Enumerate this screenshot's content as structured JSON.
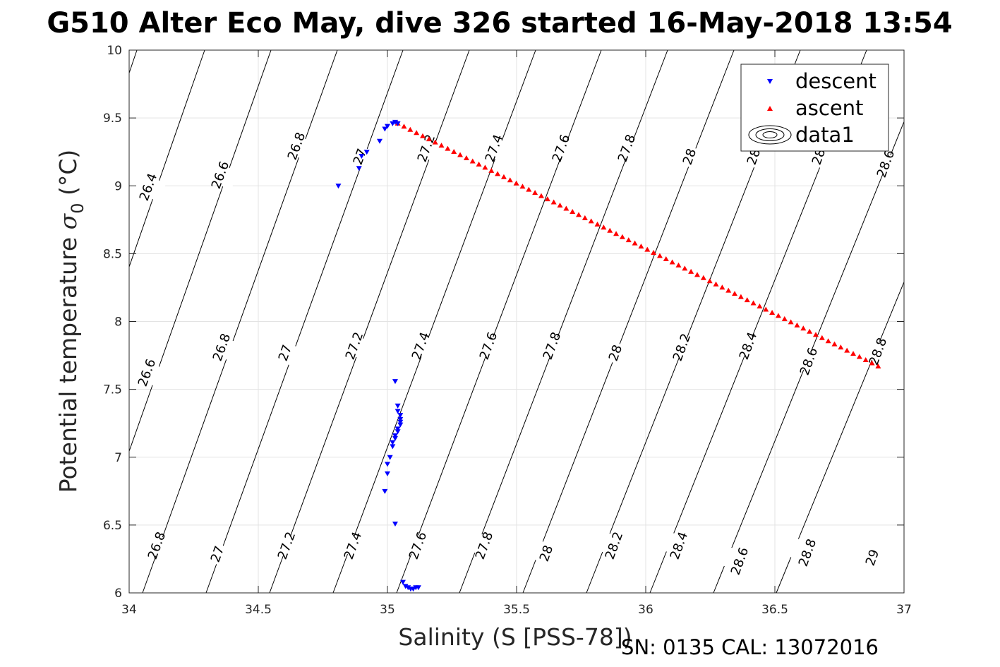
{
  "title": "G510 Alter Eco May, dive 326 started 16-May-2018 13:54",
  "footer": "SN: 0135  CAL: 13072016",
  "chart_data": {
    "type": "scatter",
    "xlabel": "Salinity (S [PSS-78])",
    "ylabel_main": "Potential temperature ",
    "ylabel_symbol": "σ",
    "ylabel_sub": "0",
    "ylabel_unit": " (°C)",
    "xlim": [
      34,
      37
    ],
    "ylim": [
      6,
      10
    ],
    "x_ticks": [
      34,
      34.5,
      35,
      35.5,
      36,
      36.5,
      37
    ],
    "x_tick_labels": [
      "34",
      "34.5",
      "35",
      "35.5",
      "36",
      "36.5",
      "37"
    ],
    "y_ticks": [
      6,
      6.5,
      7,
      7.5,
      8,
      8.5,
      9,
      9.5,
      10
    ],
    "y_tick_labels": [
      "6",
      "6.5",
      "7",
      "7.5",
      "8",
      "8.5",
      "9",
      "9.5",
      "10"
    ],
    "grid": true,
    "legend_position": "top-right",
    "legend": [
      "descent",
      "ascent",
      "data1"
    ],
    "series": [
      {
        "name": "descent",
        "marker": "down-triangle",
        "color": "#0000ff",
        "points": [
          [
            34.81,
            9.0
          ],
          [
            34.89,
            9.13
          ],
          [
            34.9,
            9.22
          ],
          [
            34.92,
            9.25
          ],
          [
            34.97,
            9.33
          ],
          [
            34.99,
            9.42
          ],
          [
            35.0,
            9.44
          ],
          [
            35.02,
            9.46
          ],
          [
            35.03,
            9.47
          ],
          [
            35.04,
            9.46
          ],
          [
            35.03,
            7.56
          ],
          [
            35.04,
            7.38
          ],
          [
            35.04,
            7.34
          ],
          [
            35.05,
            7.31
          ],
          [
            35.05,
            7.28
          ],
          [
            35.05,
            7.26
          ],
          [
            35.05,
            7.24
          ],
          [
            35.04,
            7.21
          ],
          [
            35.04,
            7.19
          ],
          [
            35.03,
            7.16
          ],
          [
            35.03,
            7.14
          ],
          [
            35.02,
            7.11
          ],
          [
            35.02,
            7.08
          ],
          [
            35.01,
            7.0
          ],
          [
            35.0,
            6.95
          ],
          [
            35.0,
            6.88
          ],
          [
            34.99,
            6.75
          ],
          [
            35.03,
            6.51
          ],
          [
            35.06,
            6.08
          ],
          [
            35.07,
            6.05
          ],
          [
            35.08,
            6.04
          ],
          [
            35.09,
            6.03
          ],
          [
            35.1,
            6.03
          ],
          [
            35.11,
            6.04
          ],
          [
            35.12,
            6.04
          ]
        ]
      },
      {
        "name": "ascent",
        "marker": "up-triangle",
        "color": "#ff0000",
        "line_from": [
          35.04,
          9.46
        ],
        "line_to": [
          36.9,
          7.67
        ],
        "count": 78
      }
    ],
    "contours": {
      "label_values": [
        "26.4",
        "26.6",
        "26.8",
        "27",
        "27.2",
        "27.4",
        "27.6",
        "27.8",
        "28",
        "28",
        "28",
        "28.6",
        "26.6",
        "26.8",
        "27",
        "27.2",
        "27.4",
        "27.6",
        "27.8",
        "28",
        "28.2",
        "28.4",
        "28.6",
        "28.8",
        "26.8",
        "27",
        "27.2",
        "27.4",
        "27.6",
        "27.8",
        "28",
        "28.2",
        "28.4",
        "28.6",
        "28.8",
        "29"
      ]
    }
  }
}
